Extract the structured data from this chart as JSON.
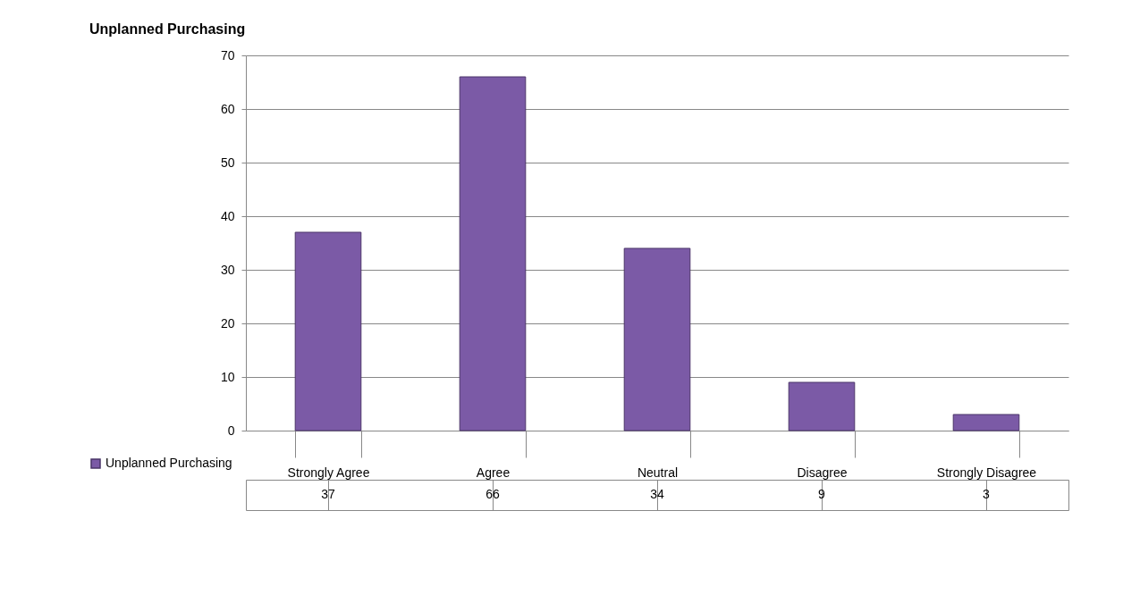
{
  "chart_data": {
    "type": "bar",
    "title": "Unplanned Purchasing",
    "categories": [
      "Strongly Agree",
      "Agree",
      "Neutral",
      "Disagree",
      "Strongly Disagree"
    ],
    "series": [
      {
        "name": "Unplanned Purchasing",
        "color": "#7b5aa6",
        "values": [
          37,
          66,
          34,
          9,
          3
        ]
      }
    ],
    "ylim": [
      0,
      70
    ],
    "yticks": [
      0,
      10,
      20,
      30,
      40,
      50,
      60,
      70
    ],
    "grid": "y",
    "data_labels": true,
    "legend": "bottom left"
  }
}
